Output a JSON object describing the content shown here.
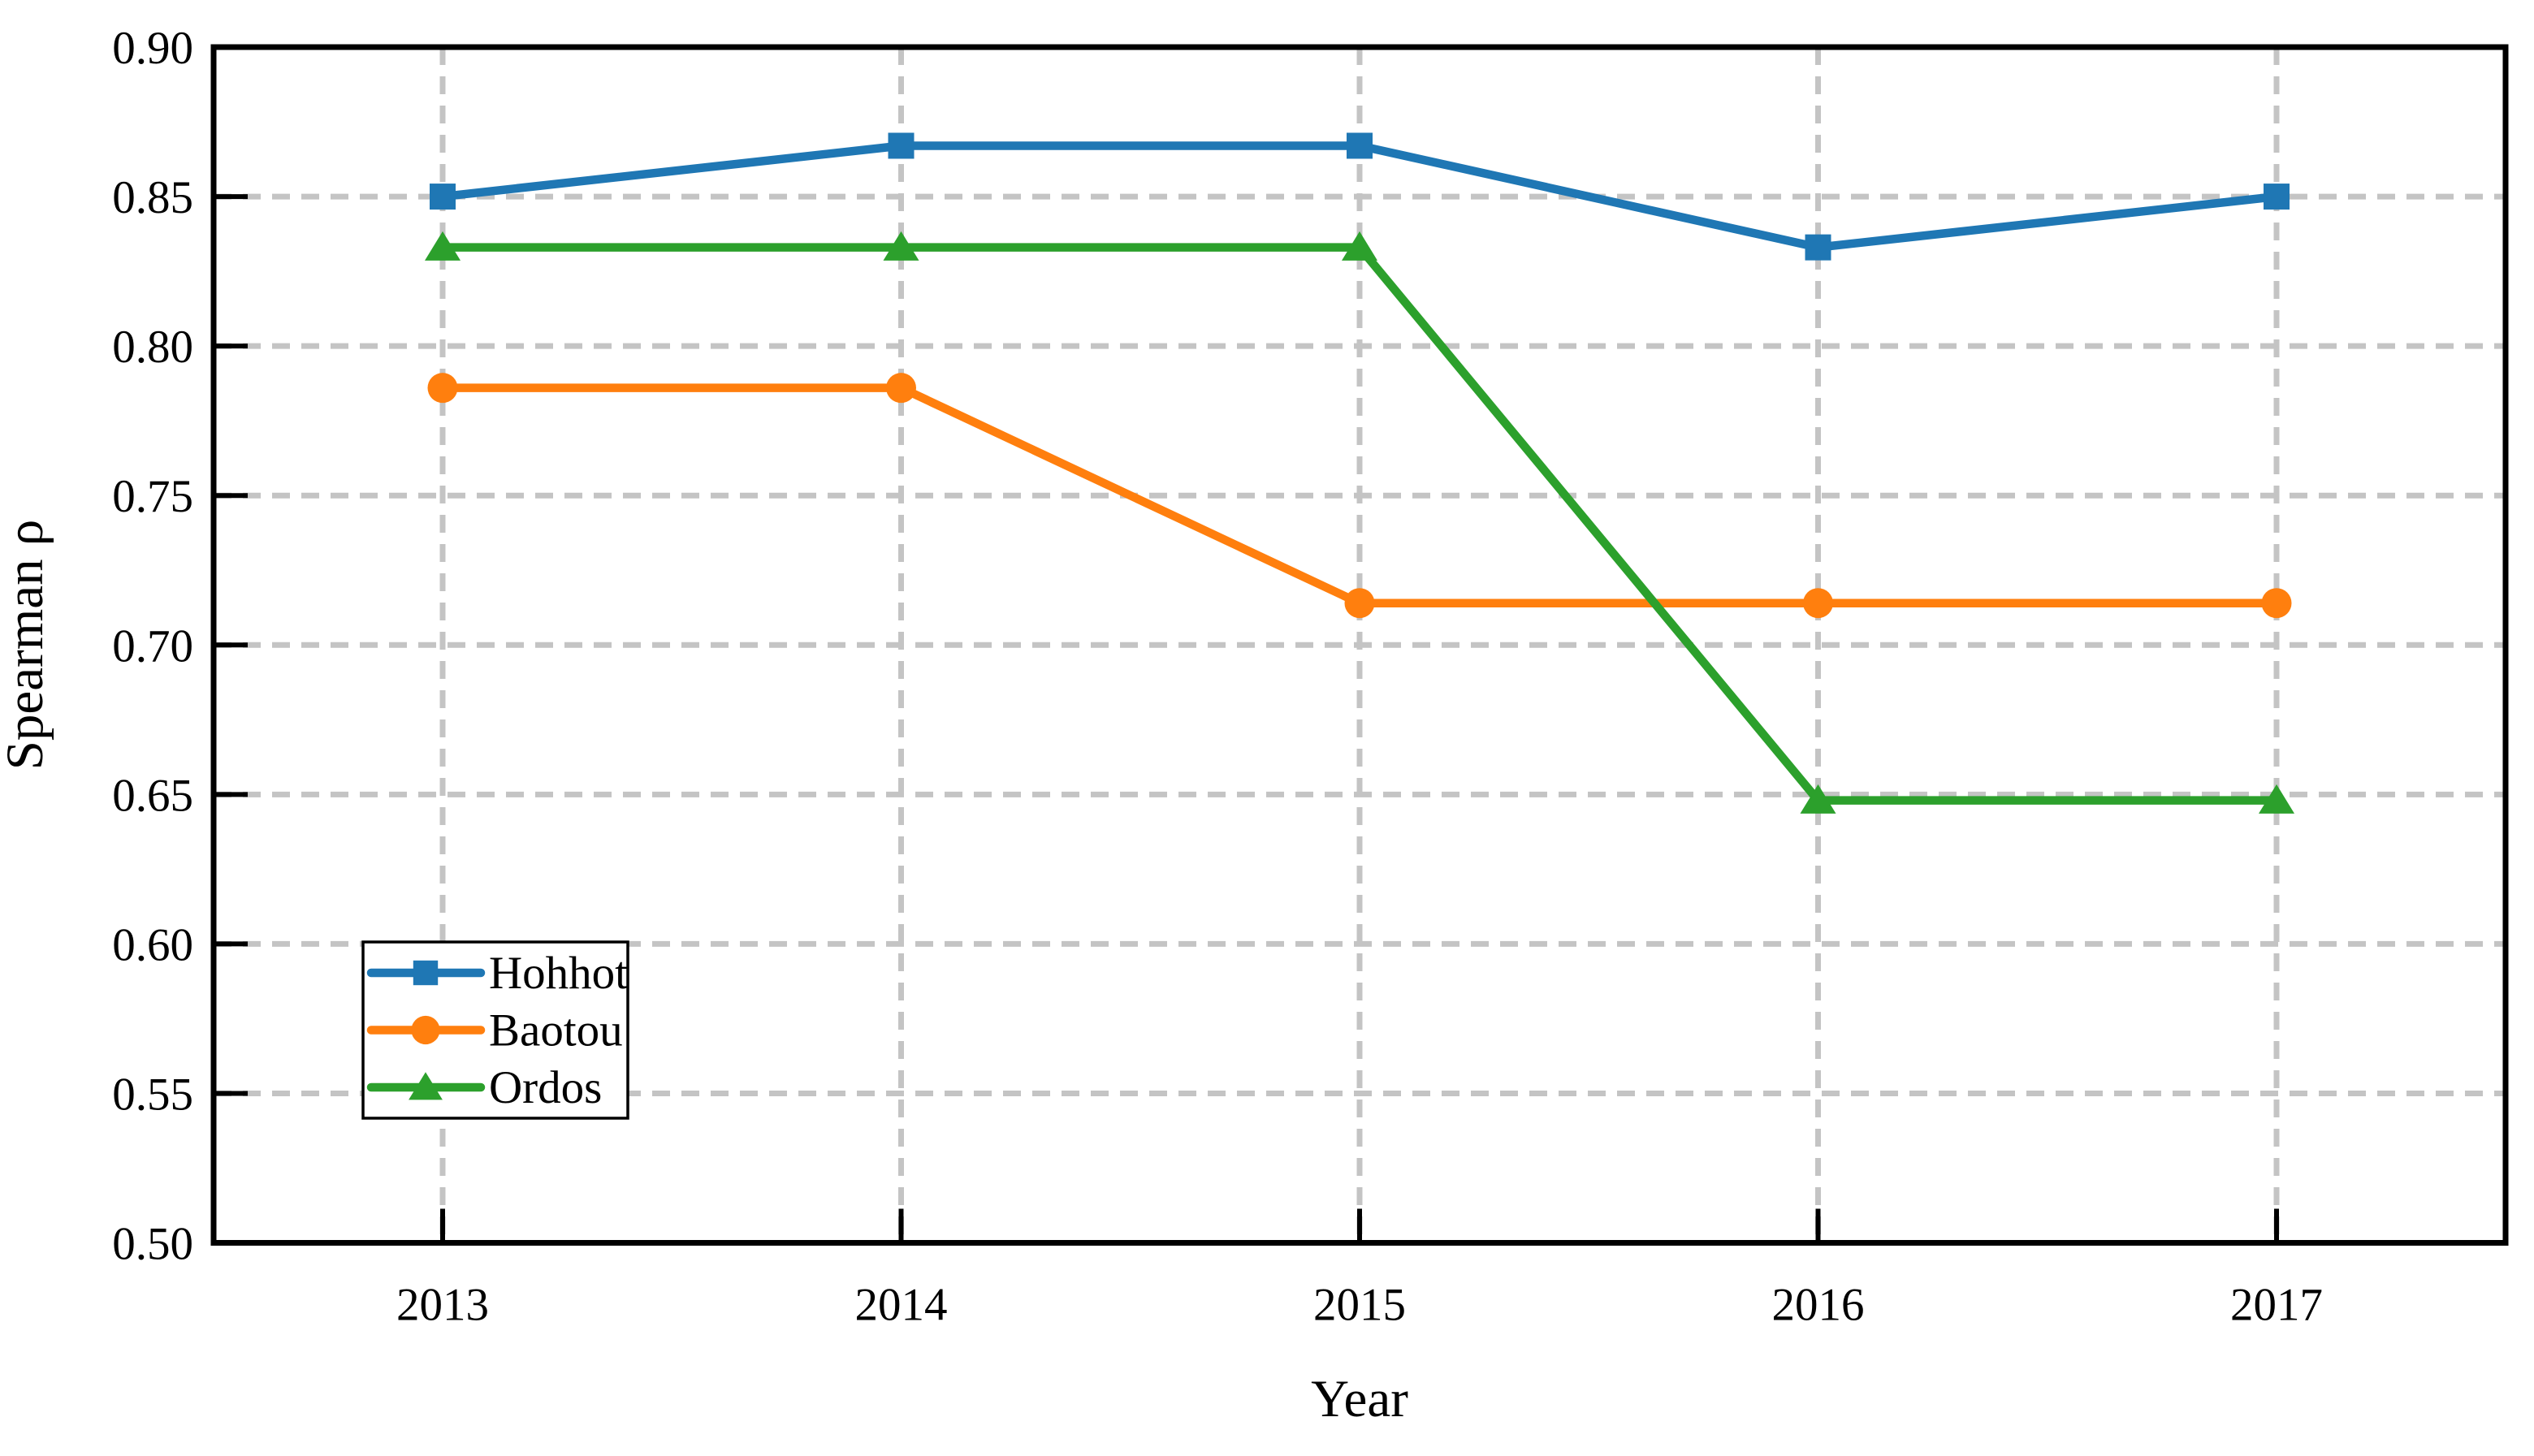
{
  "chart_data": {
    "type": "line",
    "title": "",
    "xlabel": "Year",
    "ylabel": "Spearman ρ",
    "x": [
      2013,
      2014,
      2015,
      2016,
      2017
    ],
    "xtick_labels": [
      "2013",
      "2014",
      "2015",
      "2016",
      "2017"
    ],
    "ylim": [
      0.5,
      0.9
    ],
    "ytick_step": 0.05,
    "ytick_labels": [
      "0.50",
      "0.55",
      "0.60",
      "0.65",
      "0.70",
      "0.75",
      "0.80",
      "0.85",
      "0.90"
    ],
    "series": [
      {
        "name": "Hohhot",
        "color": "#1f77b4",
        "marker": "square",
        "values": [
          0.85,
          0.867,
          0.867,
          0.833,
          0.85
        ]
      },
      {
        "name": "Baotou",
        "color": "#ff7f0e",
        "marker": "circle",
        "values": [
          0.786,
          0.786,
          0.714,
          0.714,
          0.714
        ]
      },
      {
        "name": "Ordos",
        "color": "#2ca02c",
        "marker": "triangle",
        "values": [
          0.833,
          0.833,
          0.833,
          0.648,
          0.648
        ]
      }
    ],
    "grid": {
      "show": true,
      "style": "dashed",
      "color": "#c4c4c4"
    },
    "axis_color": "#000000",
    "legend": {
      "position": "lower-left",
      "border_color": "#000000",
      "background": "#ffffff",
      "entries": [
        "Hohhot",
        "Baotou",
        "Ordos"
      ]
    }
  }
}
